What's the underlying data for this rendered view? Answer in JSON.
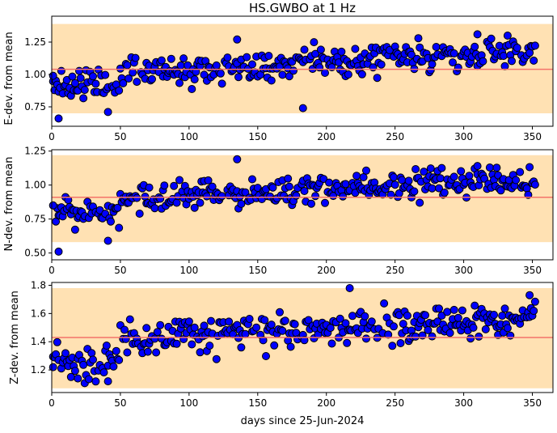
{
  "chart_data": {
    "title": "HS.GWBO at 1 Hz",
    "xlabel": "days since 25-Jun-2024",
    "xlim": [
      0,
      365
    ],
    "xticks": [
      0,
      50,
      100,
      150,
      200,
      250,
      300,
      350
    ],
    "colors": {
      "band": "#ffe1b3",
      "line": "#f4736a",
      "marker": "#0000ff",
      "marker_edge": "#000000"
    },
    "panels": [
      {
        "type": "scatter",
        "ylabel": "E-dev. from mean",
        "ylim": [
          0.6,
          1.45
        ],
        "yticks": [
          0.75,
          1.0,
          1.25
        ],
        "tick_labels": [
          "0.75",
          "1.00",
          "1.25"
        ],
        "band": [
          0.7,
          1.39
        ],
        "mean": 1.04,
        "base": 0.92,
        "trend": 0.00055,
        "spread": 0.09,
        "seed": 11,
        "extra_points": [
          [
            5,
            0.66
          ],
          [
            41,
            0.71
          ],
          [
            183,
            0.74
          ],
          [
            135,
            1.27
          ],
          [
            310,
            1.31
          ],
          [
            1,
            0.99
          ]
        ]
      },
      {
        "type": "scatter",
        "ylabel": "N-dev. from mean",
        "ylim": [
          0.45,
          1.26
        ],
        "yticks": [
          0.5,
          0.75,
          1.0,
          1.25
        ],
        "tick_labels": [
          "0.50",
          "0.75",
          "1.00",
          "1.25"
        ],
        "band": [
          0.58,
          1.22
        ],
        "mean": 0.91,
        "base": 0.8,
        "trend": 0.00052,
        "spread": 0.08,
        "seed": 23,
        "extra_points": [
          [
            5,
            0.51
          ],
          [
            41,
            0.59
          ],
          [
            135,
            1.19
          ],
          [
            310,
            1.14
          ],
          [
            1,
            0.85
          ]
        ]
      },
      {
        "type": "scatter",
        "ylabel": "Z-dev. from mean",
        "ylim": [
          1.04,
          1.82
        ],
        "yticks": [
          1.2,
          1.4,
          1.6,
          1.8
        ],
        "tick_labels": [
          "1.2",
          "1.4",
          "1.6",
          "1.8"
        ],
        "band": [
          1.07,
          1.78
        ],
        "mean": 1.43,
        "base": 1.26,
        "trend": 0.00055,
        "spread": 0.1,
        "seed": 37,
        "extra_points": [
          [
            41,
            1.12
          ],
          [
            217,
            1.78
          ],
          [
            348,
            1.73
          ],
          [
            19,
            1.14
          ],
          [
            1,
            1.22
          ]
        ]
      }
    ]
  }
}
